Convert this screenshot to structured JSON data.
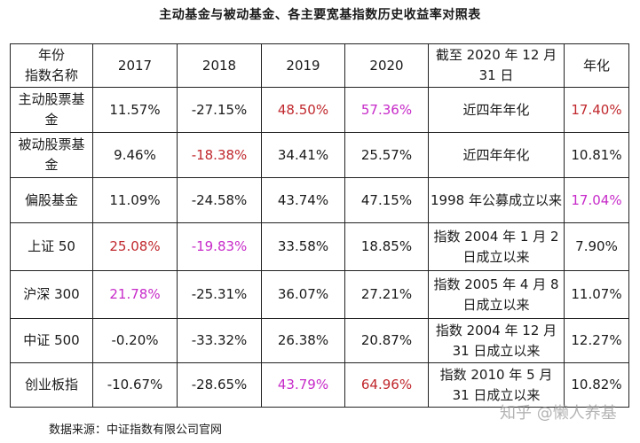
{
  "title": "主动基金与被动基金、各主要宽基指数历史收益率对照表",
  "header": {
    "corner_top": "年份",
    "corner_bottom": "指数名称",
    "y2017": "2017",
    "y2018": "2018",
    "y2019": "2019",
    "y2020": "2020",
    "period": "截至 2020 年 12 月 31 日",
    "annualized": "年化"
  },
  "rows": [
    {
      "name": "主动股票基金",
      "v2017": "11.57%",
      "v2018": "-27.15%",
      "v2019": "48.50%",
      "v2020": "57.36%",
      "period": "近四年年化",
      "annual": "17.40%"
    },
    {
      "name": "被动股票基金",
      "v2017": "9.46%",
      "v2018": "-18.38%",
      "v2019": "34.41%",
      "v2020": "25.57%",
      "period": "近四年年化",
      "annual": "10.81%"
    },
    {
      "name": "偏股基金",
      "v2017": "11.09%",
      "v2018": "-24.58%",
      "v2019": "43.74%",
      "v2020": "47.15%",
      "period": "1998 年公募成立以来",
      "annual": "17.04%"
    },
    {
      "name": "上证 50",
      "v2017": "25.08%",
      "v2018": "-19.83%",
      "v2019": "33.58%",
      "v2020": "18.85%",
      "period": "指数 2004 年 1 月 2 日成立以来",
      "annual": "7.90%"
    },
    {
      "name": "沪深 300",
      "v2017": "21.78%",
      "v2018": "-25.31%",
      "v2019": "36.07%",
      "v2020": "27.21%",
      "period": "指数 2005 年 4 月 8 日成立以来",
      "annual": "11.07%"
    },
    {
      "name": "中证 500",
      "v2017": "-0.20%",
      "v2018": "-33.32%",
      "v2019": "26.38%",
      "v2020": "20.87%",
      "period": "指数 2004 年 12 月 31 日成立以来",
      "annual": "12.27%"
    },
    {
      "name": "创业板指",
      "v2017": "-10.67%",
      "v2018": "-28.65%",
      "v2019": "43.79%",
      "v2020": "64.96%",
      "period": "指数 2010 年 5 月 31 日成立以来",
      "annual": "10.82%"
    }
  ],
  "source": "数据来源：中证指数有限公司官网",
  "watermark": "知乎 @懒人养基",
  "colors": {
    "red": "#c0282d",
    "magenta": "#c72bc9"
  }
}
